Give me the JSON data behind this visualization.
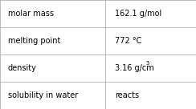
{
  "rows": [
    {
      "label": "molar mass",
      "value": "162.1 g/mol",
      "has_super": false
    },
    {
      "label": "melting point",
      "value": "772 °C",
      "has_super": false
    },
    {
      "label": "density",
      "value": "3.16 g/cm",
      "has_super": true,
      "superscript": "3"
    },
    {
      "label": "solubility in water",
      "value": "reacts",
      "has_super": false
    }
  ],
  "col_split": 0.535,
  "bg_color": "#ffffff",
  "border_color": "#b0b0b0",
  "text_color": "#000000",
  "label_fontsize": 7.0,
  "value_fontsize": 7.0,
  "super_fontsize": 4.8,
  "fig_width": 2.44,
  "fig_height": 1.36,
  "dpi": 100
}
